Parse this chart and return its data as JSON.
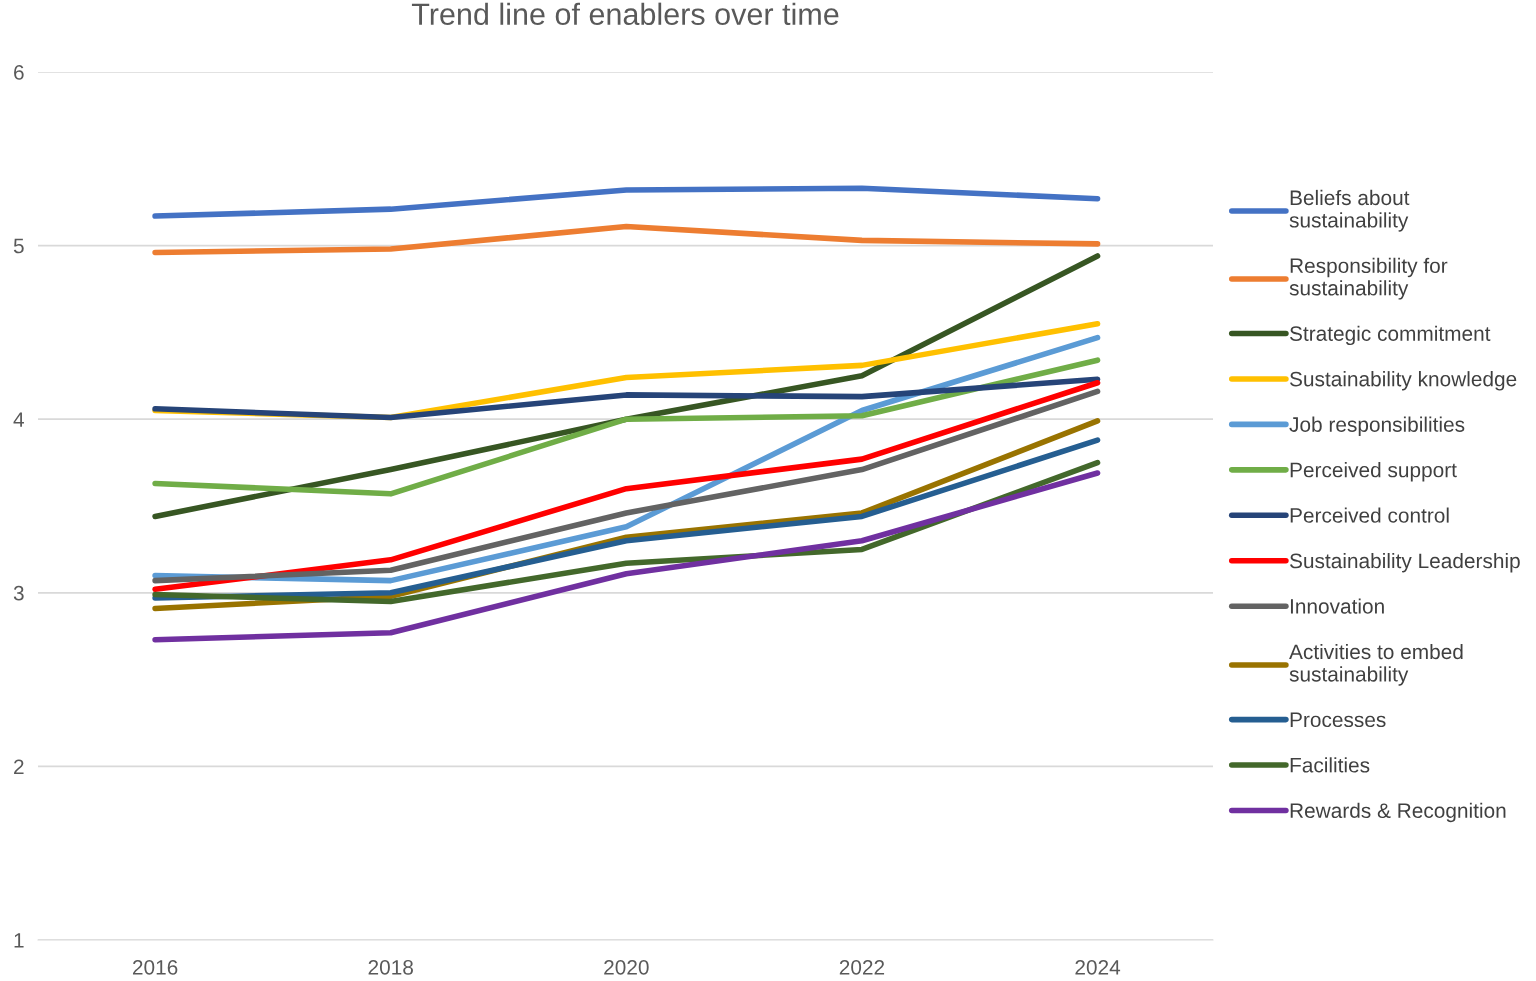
{
  "chart_data": {
    "type": "line",
    "title": "Trend line of enablers over time",
    "categories": [
      "2016",
      "2018",
      "2020",
      "2022",
      "2024"
    ],
    "ylim": [
      1,
      6
    ],
    "yticks": [
      1,
      2,
      3,
      4,
      5,
      6
    ],
    "grid": "y",
    "legend": "right",
    "marker": "none",
    "line_style": "solid",
    "series": [
      {
        "name": "Beliefs about sustainability",
        "color": "#4472c4",
        "values": [
          5.17,
          5.21,
          5.32,
          5.33,
          5.27
        ]
      },
      {
        "name": "Responsibility for sustainability",
        "color": "#ed7d31",
        "values": [
          4.96,
          4.98,
          5.11,
          5.03,
          5.01
        ]
      },
      {
        "name": "Strategic commitment",
        "color": "#375623",
        "values": [
          3.44,
          3.71,
          4.0,
          4.25,
          4.94
        ]
      },
      {
        "name": "Sustainability knowledge",
        "color": "#ffc000",
        "values": [
          4.05,
          4.01,
          4.24,
          4.31,
          4.55
        ]
      },
      {
        "name": "Job responsibilities",
        "color": "#5b9bd5",
        "values": [
          3.1,
          3.07,
          3.38,
          4.05,
          4.47
        ]
      },
      {
        "name": "Perceived support",
        "color": "#70ad47",
        "values": [
          3.63,
          3.57,
          4.0,
          4.02,
          4.34
        ]
      },
      {
        "name": "Perceived control",
        "color": "#264478",
        "values": [
          4.06,
          4.01,
          4.14,
          4.13,
          4.23
        ]
      },
      {
        "name": "Sustainability Leadership",
        "color": "#ff0000",
        "values": [
          3.02,
          3.19,
          3.6,
          3.77,
          4.21
        ]
      },
      {
        "name": "Innovation",
        "color": "#636363",
        "values": [
          3.07,
          3.13,
          3.46,
          3.71,
          4.16
        ]
      },
      {
        "name": "Activities to embed sustainability",
        "color": "#997300",
        "values": [
          2.91,
          2.98,
          3.32,
          3.46,
          3.99
        ]
      },
      {
        "name": "Processes",
        "color": "#255e91",
        "values": [
          2.97,
          3.0,
          3.3,
          3.44,
          3.88
        ]
      },
      {
        "name": "Facilities",
        "color": "#43682b",
        "values": [
          2.99,
          2.95,
          3.17,
          3.25,
          3.75
        ]
      },
      {
        "name": "Rewards & Recognition",
        "color": "#7030a0",
        "values": [
          2.73,
          2.77,
          3.11,
          3.3,
          3.69
        ]
      }
    ]
  }
}
